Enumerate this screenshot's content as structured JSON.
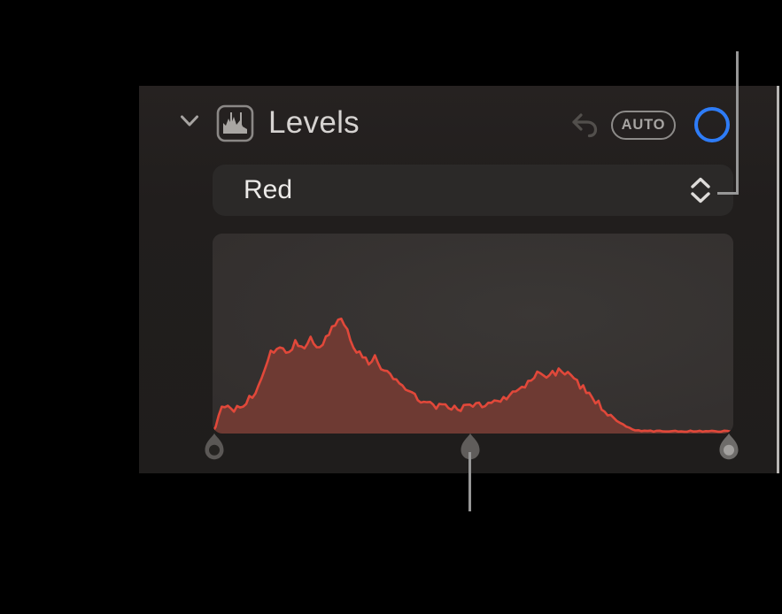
{
  "panel": {
    "title": "Levels",
    "header": {
      "disclosure_icon": "chevron-down-icon",
      "section_icon": "levels-histogram-icon",
      "undo_icon": "undo-arrow-icon",
      "auto_button_label": "AUTO",
      "toggle_circle_color": "#2e7cf7"
    },
    "channel_selector": {
      "selected": "Red",
      "indicator_icon": "up-down-chevrons-icon"
    }
  },
  "histogram": {
    "channel": "Red",
    "line_color": "#e1483a",
    "fill_color": "#6e3a33",
    "points": [
      [
        0.0,
        0.01
      ],
      [
        0.006,
        0.03
      ],
      [
        0.012,
        0.11
      ],
      [
        0.02,
        0.125
      ],
      [
        0.035,
        0.12
      ],
      [
        0.05,
        0.13
      ],
      [
        0.062,
        0.15
      ],
      [
        0.08,
        0.2
      ],
      [
        0.093,
        0.25
      ],
      [
        0.104,
        0.33
      ],
      [
        0.112,
        0.41
      ],
      [
        0.122,
        0.43
      ],
      [
        0.14,
        0.42
      ],
      [
        0.15,
        0.4
      ],
      [
        0.158,
        0.46
      ],
      [
        0.168,
        0.41
      ],
      [
        0.187,
        0.48
      ],
      [
        0.196,
        0.44
      ],
      [
        0.21,
        0.445
      ],
      [
        0.226,
        0.51
      ],
      [
        0.247,
        0.575
      ],
      [
        0.256,
        0.52
      ],
      [
        0.268,
        0.46
      ],
      [
        0.278,
        0.405
      ],
      [
        0.292,
        0.385
      ],
      [
        0.301,
        0.35
      ],
      [
        0.309,
        0.39
      ],
      [
        0.323,
        0.33
      ],
      [
        0.345,
        0.28
      ],
      [
        0.369,
        0.235
      ],
      [
        0.391,
        0.19
      ],
      [
        0.408,
        0.15
      ],
      [
        0.437,
        0.133
      ],
      [
        0.464,
        0.125
      ],
      [
        0.493,
        0.133
      ],
      [
        0.51,
        0.14
      ],
      [
        0.544,
        0.16
      ],
      [
        0.578,
        0.2
      ],
      [
        0.6,
        0.235
      ],
      [
        0.624,
        0.3
      ],
      [
        0.641,
        0.285
      ],
      [
        0.668,
        0.32
      ],
      [
        0.685,
        0.29
      ],
      [
        0.702,
        0.25
      ],
      [
        0.726,
        0.19
      ],
      [
        0.748,
        0.13
      ],
      [
        0.76,
        0.1
      ],
      [
        0.777,
        0.06
      ],
      [
        0.794,
        0.035
      ],
      [
        0.806,
        0.02
      ],
      [
        0.828,
        0.012
      ],
      [
        0.9,
        0.012
      ],
      [
        1.0,
        0.012
      ]
    ]
  },
  "sliders": {
    "left_handle": "black-point",
    "mid_handle": "midtones",
    "right_handle": "white-point",
    "handle_body_color": "#605d5b",
    "left_hole_color": "#262422",
    "right_dot_color": "#a3a19f"
  },
  "callouts": {
    "color": "#979797",
    "targets": [
      "channel-popup-indicator",
      "midtones-handle"
    ]
  }
}
